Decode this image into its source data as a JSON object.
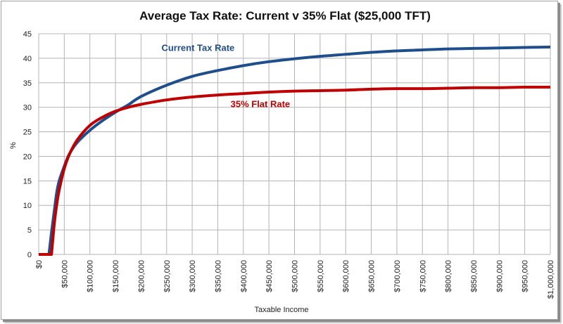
{
  "chart_data": {
    "type": "line",
    "title": "Average Tax Rate: Current v 35% Flat ($25,000 TFT)",
    "xlabel": "Taxable Income",
    "ylabel": "%",
    "xlim": [
      0,
      1000000
    ],
    "ylim": [
      0,
      45
    ],
    "yticks": [
      0,
      5,
      10,
      15,
      20,
      25,
      30,
      35,
      40,
      45
    ],
    "xticks": [
      0,
      50000,
      100000,
      150000,
      200000,
      250000,
      300000,
      350000,
      400000,
      450000,
      500000,
      550000,
      600000,
      650000,
      700000,
      750000,
      800000,
      850000,
      900000,
      950000,
      1000000
    ],
    "xtick_labels": [
      "$0",
      "$50,000",
      "$100,000",
      "$150,000",
      "$200,000",
      "$250,000",
      "$300,000",
      "$350,000",
      "$400,000",
      "$450,000",
      "$500,000",
      "$550,000",
      "$600,000",
      "$650,000",
      "$700,000",
      "$750,000",
      "$800,000",
      "$850,000",
      "$900,000",
      "$950,000",
      "$1,000,000"
    ],
    "grid": true,
    "legend": "inline-annotations",
    "series": [
      {
        "name": "Current Tax Rate",
        "color": "#1f4e8c",
        "x": [
          0,
          20000,
          25000,
          30000,
          35000,
          40000,
          50000,
          60000,
          75000,
          100000,
          125000,
          150000,
          175000,
          200000,
          250000,
          300000,
          350000,
          400000,
          450000,
          500000,
          550000,
          600000,
          650000,
          700000,
          750000,
          800000,
          850000,
          900000,
          950000,
          1000000
        ],
        "y": [
          0,
          0,
          4.5,
          8.5,
          12.5,
          15.0,
          18.0,
          20.5,
          22.8,
          25.3,
          27.3,
          29.0,
          30.5,
          32.2,
          34.5,
          36.3,
          37.5,
          38.5,
          39.3,
          39.9,
          40.4,
          40.8,
          41.2,
          41.5,
          41.7,
          41.9,
          42.0,
          42.1,
          42.2,
          42.3
        ]
      },
      {
        "name": "35% Flat Rate",
        "color": "#c00000",
        "x": [
          0,
          25000,
          30000,
          35000,
          40000,
          50000,
          60000,
          75000,
          100000,
          125000,
          150000,
          175000,
          200000,
          250000,
          300000,
          350000,
          400000,
          450000,
          500000,
          550000,
          600000,
          650000,
          700000,
          750000,
          800000,
          850000,
          900000,
          950000,
          1000000
        ],
        "y": [
          0,
          0,
          5.8,
          10.0,
          13.1,
          17.5,
          20.4,
          23.3,
          26.3,
          28.0,
          29.2,
          30.0,
          30.6,
          31.5,
          32.1,
          32.5,
          32.8,
          33.1,
          33.3,
          33.4,
          33.5,
          33.7,
          33.8,
          33.8,
          33.9,
          34.0,
          34.0,
          34.1,
          34.1
        ]
      }
    ],
    "annotations": [
      {
        "text": "Current Tax Rate",
        "series": "Current Tax Rate",
        "at_x": 240000,
        "at_y": 41.5,
        "color": "#1f4e8c"
      },
      {
        "text": "35% Flat Rate",
        "series": "35% Flat Rate",
        "at_x": 375000,
        "at_y": 30.0,
        "color": "#c00000"
      }
    ]
  }
}
